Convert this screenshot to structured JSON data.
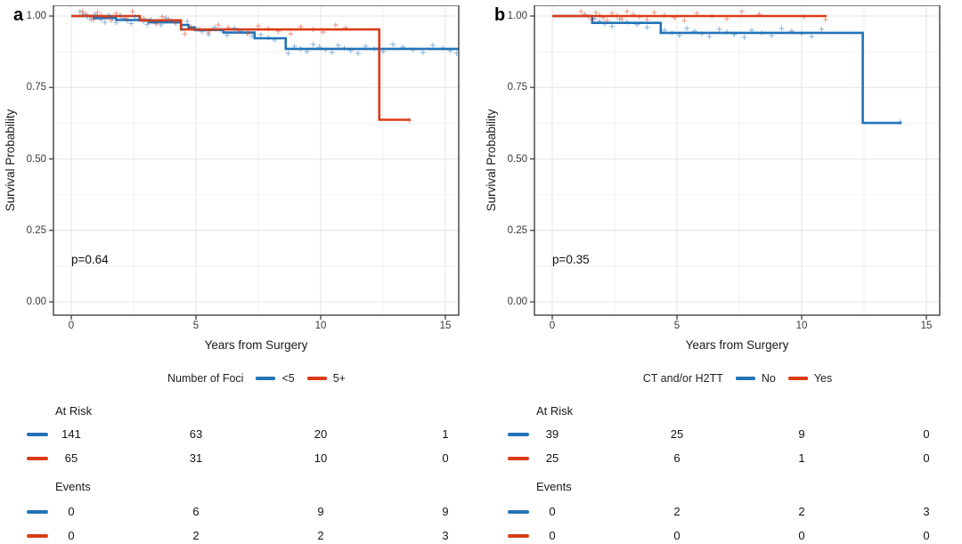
{
  "colors": {
    "blue": "#2373b7",
    "red": "#da3b18",
    "grid_major": "#e4e4e4",
    "grid_minor": "#f2f2f2",
    "border": "#333333",
    "text": "#1a1a1a"
  },
  "chart_data": [
    {
      "type": "line",
      "subtype": "kaplan-meier-step",
      "panel_label": "a",
      "xlabel": "Years from Surgery",
      "ylabel": "Survival Probability",
      "pvalue": "p=0.64",
      "legend_title": "Number of Foci",
      "legend_position": "bottom",
      "grid": "major+minor",
      "xlim": [
        -0.75,
        15.55
      ],
      "ylim": [
        -0.05,
        1.04
      ],
      "xticks": [
        0,
        5,
        10,
        15
      ],
      "xtick_labels": [
        "0",
        "5",
        "10",
        "15"
      ],
      "yticks": [
        1.0,
        0.75,
        0.5,
        0.25,
        0.0
      ],
      "ytick_labels": [
        "1.00",
        "0.75",
        "0.50",
        "0.25",
        "0.00"
      ],
      "grid_minor_x": [
        2.5,
        7.5,
        12.5
      ],
      "grid_minor_y": [
        0.875,
        0.625,
        0.375,
        0.125
      ],
      "series": [
        {
          "name": "<5",
          "color_key": "blue",
          "n_start": 141,
          "steps": [
            [
              0,
              1.0
            ],
            [
              0.9,
              0.993
            ],
            [
              1.8,
              0.986
            ],
            [
              3.1,
              0.978
            ],
            [
              4.4,
              0.969
            ],
            [
              4.7,
              0.96
            ],
            [
              4.95,
              0.951
            ],
            [
              6.1,
              0.942
            ],
            [
              7.35,
              0.922
            ],
            [
              8.6,
              0.885
            ]
          ],
          "end_time": 15.55,
          "censor_times": [
            0.35,
            0.5,
            0.65,
            0.8,
            0.95,
            1.05,
            1.2,
            1.35,
            1.5,
            1.65,
            1.8,
            1.95,
            2.1,
            2.25,
            2.4,
            2.55,
            2.7,
            2.9,
            3.05,
            3.2,
            3.4,
            3.6,
            3.8,
            4.0,
            4.2,
            4.45,
            4.65,
            5.05,
            5.25,
            5.5,
            5.75,
            6.0,
            6.25,
            6.55,
            6.8,
            7.05,
            7.25,
            7.6,
            7.9,
            8.15,
            8.7,
            8.95,
            9.2,
            9.45,
            9.7,
            9.95,
            10.2,
            10.45,
            10.7,
            10.95,
            11.2,
            11.5,
            11.8,
            12.15,
            12.5,
            12.9,
            13.3,
            13.7,
            14.1,
            14.5,
            14.9,
            15.2,
            15.45
          ]
        },
        {
          "name": "5+",
          "color_key": "red",
          "n_start": 65,
          "steps": [
            [
              0,
              1.0
            ],
            [
              2.75,
              0.985
            ],
            [
              4.4,
              0.953
            ],
            [
              12.35,
              0.637
            ]
          ],
          "end_time": 13.6,
          "censor_times": [
            0.45,
            0.6,
            0.75,
            0.9,
            1.05,
            1.2,
            1.4,
            1.6,
            1.8,
            2.0,
            2.2,
            2.45,
            2.9,
            3.15,
            3.4,
            3.65,
            3.9,
            4.15,
            4.55,
            4.8,
            5.15,
            5.5,
            5.9,
            6.3,
            6.7,
            7.1,
            7.5,
            7.9,
            8.3,
            8.8,
            9.2,
            9.7,
            10.1,
            10.6,
            11.0,
            13.55
          ]
        }
      ],
      "risk_table": {
        "time_points": [
          0,
          5,
          10,
          15
        ],
        "at_risk_label": "At Risk",
        "events_label": "Events",
        "rows_at_risk": [
          [
            "141",
            "63",
            "20",
            "1"
          ],
          [
            "65",
            "31",
            "10",
            "0"
          ]
        ],
        "rows_events": [
          [
            "0",
            "6",
            "9",
            "9"
          ],
          [
            "0",
            "2",
            "2",
            "3"
          ]
        ]
      }
    },
    {
      "type": "line",
      "subtype": "kaplan-meier-step",
      "panel_label": "b",
      "xlabel": "Years from Surgery",
      "ylabel": "Survival Probability",
      "pvalue": "p=0.35",
      "legend_title": "CT and/or H2TT",
      "legend_position": "bottom",
      "grid": "major+minor",
      "xlim": [
        -0.75,
        15.55
      ],
      "ylim": [
        -0.05,
        1.04
      ],
      "xticks": [
        0,
        5,
        10,
        15
      ],
      "xtick_labels": [
        "0",
        "5",
        "10",
        "15"
      ],
      "yticks": [
        1.0,
        0.75,
        0.5,
        0.25,
        0.0
      ],
      "ytick_labels": [
        "1.00",
        "0.75",
        "0.50",
        "0.25",
        "0.00"
      ],
      "grid_minor_x": [
        2.5,
        7.5,
        12.5
      ],
      "grid_minor_y": [
        0.875,
        0.625,
        0.375,
        0.125
      ],
      "series": [
        {
          "name": "No",
          "color_key": "blue",
          "n_start": 39,
          "steps": [
            [
              0,
              1.0
            ],
            [
              1.6,
              0.976
            ],
            [
              4.35,
              0.941
            ],
            [
              12.45,
              0.626
            ]
          ],
          "end_time": 14.0,
          "censor_times": [
            1.7,
            1.9,
            2.1,
            2.4,
            2.7,
            3.0,
            3.4,
            3.8,
            4.5,
            4.8,
            5.1,
            5.4,
            5.7,
            6.0,
            6.3,
            6.7,
            7.0,
            7.3,
            7.7,
            8.0,
            8.4,
            8.8,
            9.2,
            9.6,
            10.0,
            10.4,
            10.8,
            13.95
          ]
        },
        {
          "name": "Yes",
          "color_key": "red",
          "n_start": 25,
          "steps": [
            [
              0,
              1.0
            ]
          ],
          "end_time": 11.0,
          "censor_times": [
            1.15,
            1.3,
            1.45,
            1.6,
            1.75,
            1.9,
            2.05,
            2.2,
            2.4,
            2.6,
            2.8,
            3.0,
            3.25,
            3.5,
            3.8,
            4.1,
            4.5,
            4.9,
            5.3,
            5.8,
            6.4,
            7.0,
            7.6,
            8.3,
            10.1,
            10.95
          ]
        }
      ],
      "risk_table": {
        "time_points": [
          0,
          5,
          10,
          15
        ],
        "at_risk_label": "At Risk",
        "events_label": "Events",
        "rows_at_risk": [
          [
            "39",
            "25",
            "9",
            "0"
          ],
          [
            "25",
            "6",
            "1",
            "0"
          ]
        ],
        "rows_events": [
          [
            "0",
            "2",
            "2",
            "3"
          ],
          [
            "0",
            "0",
            "0",
            "0"
          ]
        ]
      }
    }
  ]
}
